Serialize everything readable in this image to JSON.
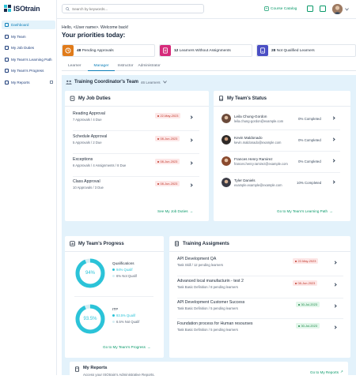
{
  "app": {
    "logo_text": "ISOtrain"
  },
  "sidebar": {
    "items": [
      {
        "label": "Dashboard"
      },
      {
        "label": "My Team"
      },
      {
        "label": "My Job Duties"
      },
      {
        "label": "My Team's Learning Path"
      },
      {
        "label": "My Team's Progress"
      },
      {
        "label": "My Reports"
      }
    ]
  },
  "header": {
    "search_placeholder": "Search by keywords...",
    "course_catalog": "Course Catalog"
  },
  "greeting": "Hello, <User name>. Welcome back!",
  "priorities_title": "Your priorities today:",
  "priority_cards": [
    {
      "count": "48",
      "label": "Pending Approvals",
      "color": "#e07b1a"
    },
    {
      "count": "12",
      "label": "Learners Without Assignments",
      "color": "#d62a7a"
    },
    {
      "count": "28",
      "label": "Not Qualified Learners",
      "color": "#4b4fc4"
    }
  ],
  "tabs": [
    {
      "label": "Learner"
    },
    {
      "label": "Manager"
    },
    {
      "label": "Instructor"
    },
    {
      "label": "Administrator"
    }
  ],
  "team": {
    "title": "Training Coordinator's Team",
    "learners": "46 Learners"
  },
  "job_duties": {
    "title": "My Job Duties",
    "items": [
      {
        "title": "Reading Approval",
        "sub": "7 Approvals / 4 Due",
        "date": "22-May-2023"
      },
      {
        "title": "Schedule Approval",
        "sub": "5 Approvals / 2 Due",
        "date": "08-Jun-2023"
      },
      {
        "title": "Exceptions",
        "sub": "6 Approvals / 4 Assignments / 8 Due",
        "date": "08-Jun-2023"
      },
      {
        "title": "Class Approval",
        "sub": "10 Approvals / 3 Due",
        "date": "08-Jun-2023"
      }
    ],
    "link": "See My Job Duties"
  },
  "team_status": {
    "title": "My Team's Status",
    "people": [
      {
        "name": "Leila Chung-Gordon",
        "email": "leila.chung-gordon@example.com",
        "completed": "0% Completed"
      },
      {
        "name": "Kevin Maldonado",
        "email": "kevin.maldonado@example.com",
        "completed": "0% Completed"
      },
      {
        "name": "Frances Henry Ramirez",
        "email": "frances.henry.ramirez@example.com",
        "completed": "0% Completed"
      },
      {
        "name": "Tyler Daniels",
        "email": "example.example@example.com",
        "completed": "10% Completed"
      }
    ],
    "link": "Go to My Team's Learning Path"
  },
  "progress": {
    "title": "My Team's Progress",
    "charts": [
      {
        "center": "94%",
        "title": "Qualifications",
        "value": 94,
        "qualif_label": "94% Qualif",
        "notq_label": "6% Not Qualif"
      },
      {
        "center": "93.5%",
        "title": "ITP",
        "value": 93.5,
        "qualif_label": "93.5% Qualif",
        "notq_label": "6.5% Not Qualif"
      }
    ],
    "link": "Go to My Team's Progress",
    "qualif_color": "#2bc3d8",
    "notq_color": "#d6eef3"
  },
  "assignments": {
    "title": "Training Assigments",
    "items": [
      {
        "title": "API Development QA",
        "sub": "Task Skill / 12 pending learners",
        "date": "22-May-2023",
        "status": "red"
      },
      {
        "title": "Advanced local manufacturin - test 2",
        "sub": "Task Basic Definition / 8 pending learners",
        "date": "08-Jun-2023",
        "status": "red"
      },
      {
        "title": "API Development Customer Success",
        "sub": "Task Basic Definition / 5 pending learners",
        "date": "30-Jul-2023",
        "status": "green"
      },
      {
        "title": "Foundation process for Human resourses",
        "sub": "Task Basic Definition / 5 pending learners",
        "date": "30-Jul-2023",
        "status": "green"
      }
    ]
  },
  "reports": {
    "title": "My Reports",
    "sub": "Access your ISOtrain's Administrative Reports.",
    "link": "Go to My Reports"
  }
}
